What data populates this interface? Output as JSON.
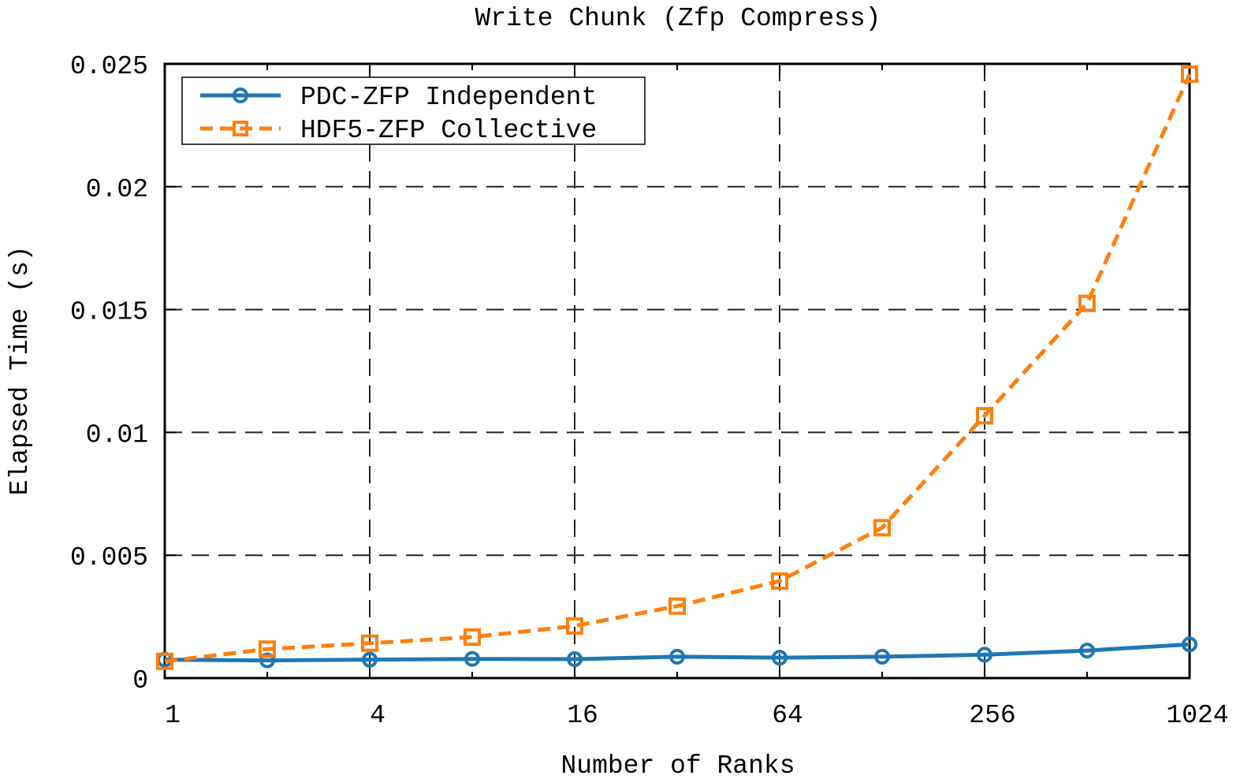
{
  "chart_data": {
    "type": "line",
    "title": "Write Chunk (Zfp Compress)",
    "xlabel": "Number of Ranks",
    "ylabel": "Elapsed Time (s)",
    "x_scale": "log2",
    "x": [
      1,
      2,
      4,
      8,
      16,
      32,
      64,
      128,
      256,
      512,
      1024
    ],
    "xlim": [
      1,
      1024
    ],
    "ylim": [
      0,
      0.025
    ],
    "xticks": [
      {
        "value": 1,
        "label": "1"
      },
      {
        "value": 4,
        "label": "4"
      },
      {
        "value": 16,
        "label": "16"
      },
      {
        "value": 64,
        "label": "64"
      },
      {
        "value": 256,
        "label": "256"
      },
      {
        "value": 1024,
        "label": "1024"
      }
    ],
    "yticks": [
      {
        "value": 0,
        "label": "0"
      },
      {
        "value": 0.005,
        "label": "0.005"
      },
      {
        "value": 0.01,
        "label": "0.01"
      },
      {
        "value": 0.015,
        "label": "0.015"
      },
      {
        "value": 0.02,
        "label": "0.02"
      },
      {
        "value": 0.025,
        "label": "0.025"
      }
    ],
    "grid": true,
    "legend_position": "top-left",
    "series": [
      {
        "name": "PDC-ZFP Independent",
        "color": "#1f77b4",
        "line_style": "solid",
        "marker": "circle",
        "values": [
          0.00075,
          0.00072,
          0.00075,
          0.00078,
          0.00077,
          0.00087,
          0.00083,
          0.00087,
          0.00095,
          0.00112,
          0.00137
        ]
      },
      {
        "name": "HDF5-ZFP Collective",
        "color": "#ff7f0e",
        "line_style": "dashed",
        "marker": "square",
        "values": [
          0.00068,
          0.00118,
          0.00142,
          0.00167,
          0.00212,
          0.00293,
          0.00395,
          0.00612,
          0.01068,
          0.01525,
          0.02458
        ]
      }
    ]
  }
}
